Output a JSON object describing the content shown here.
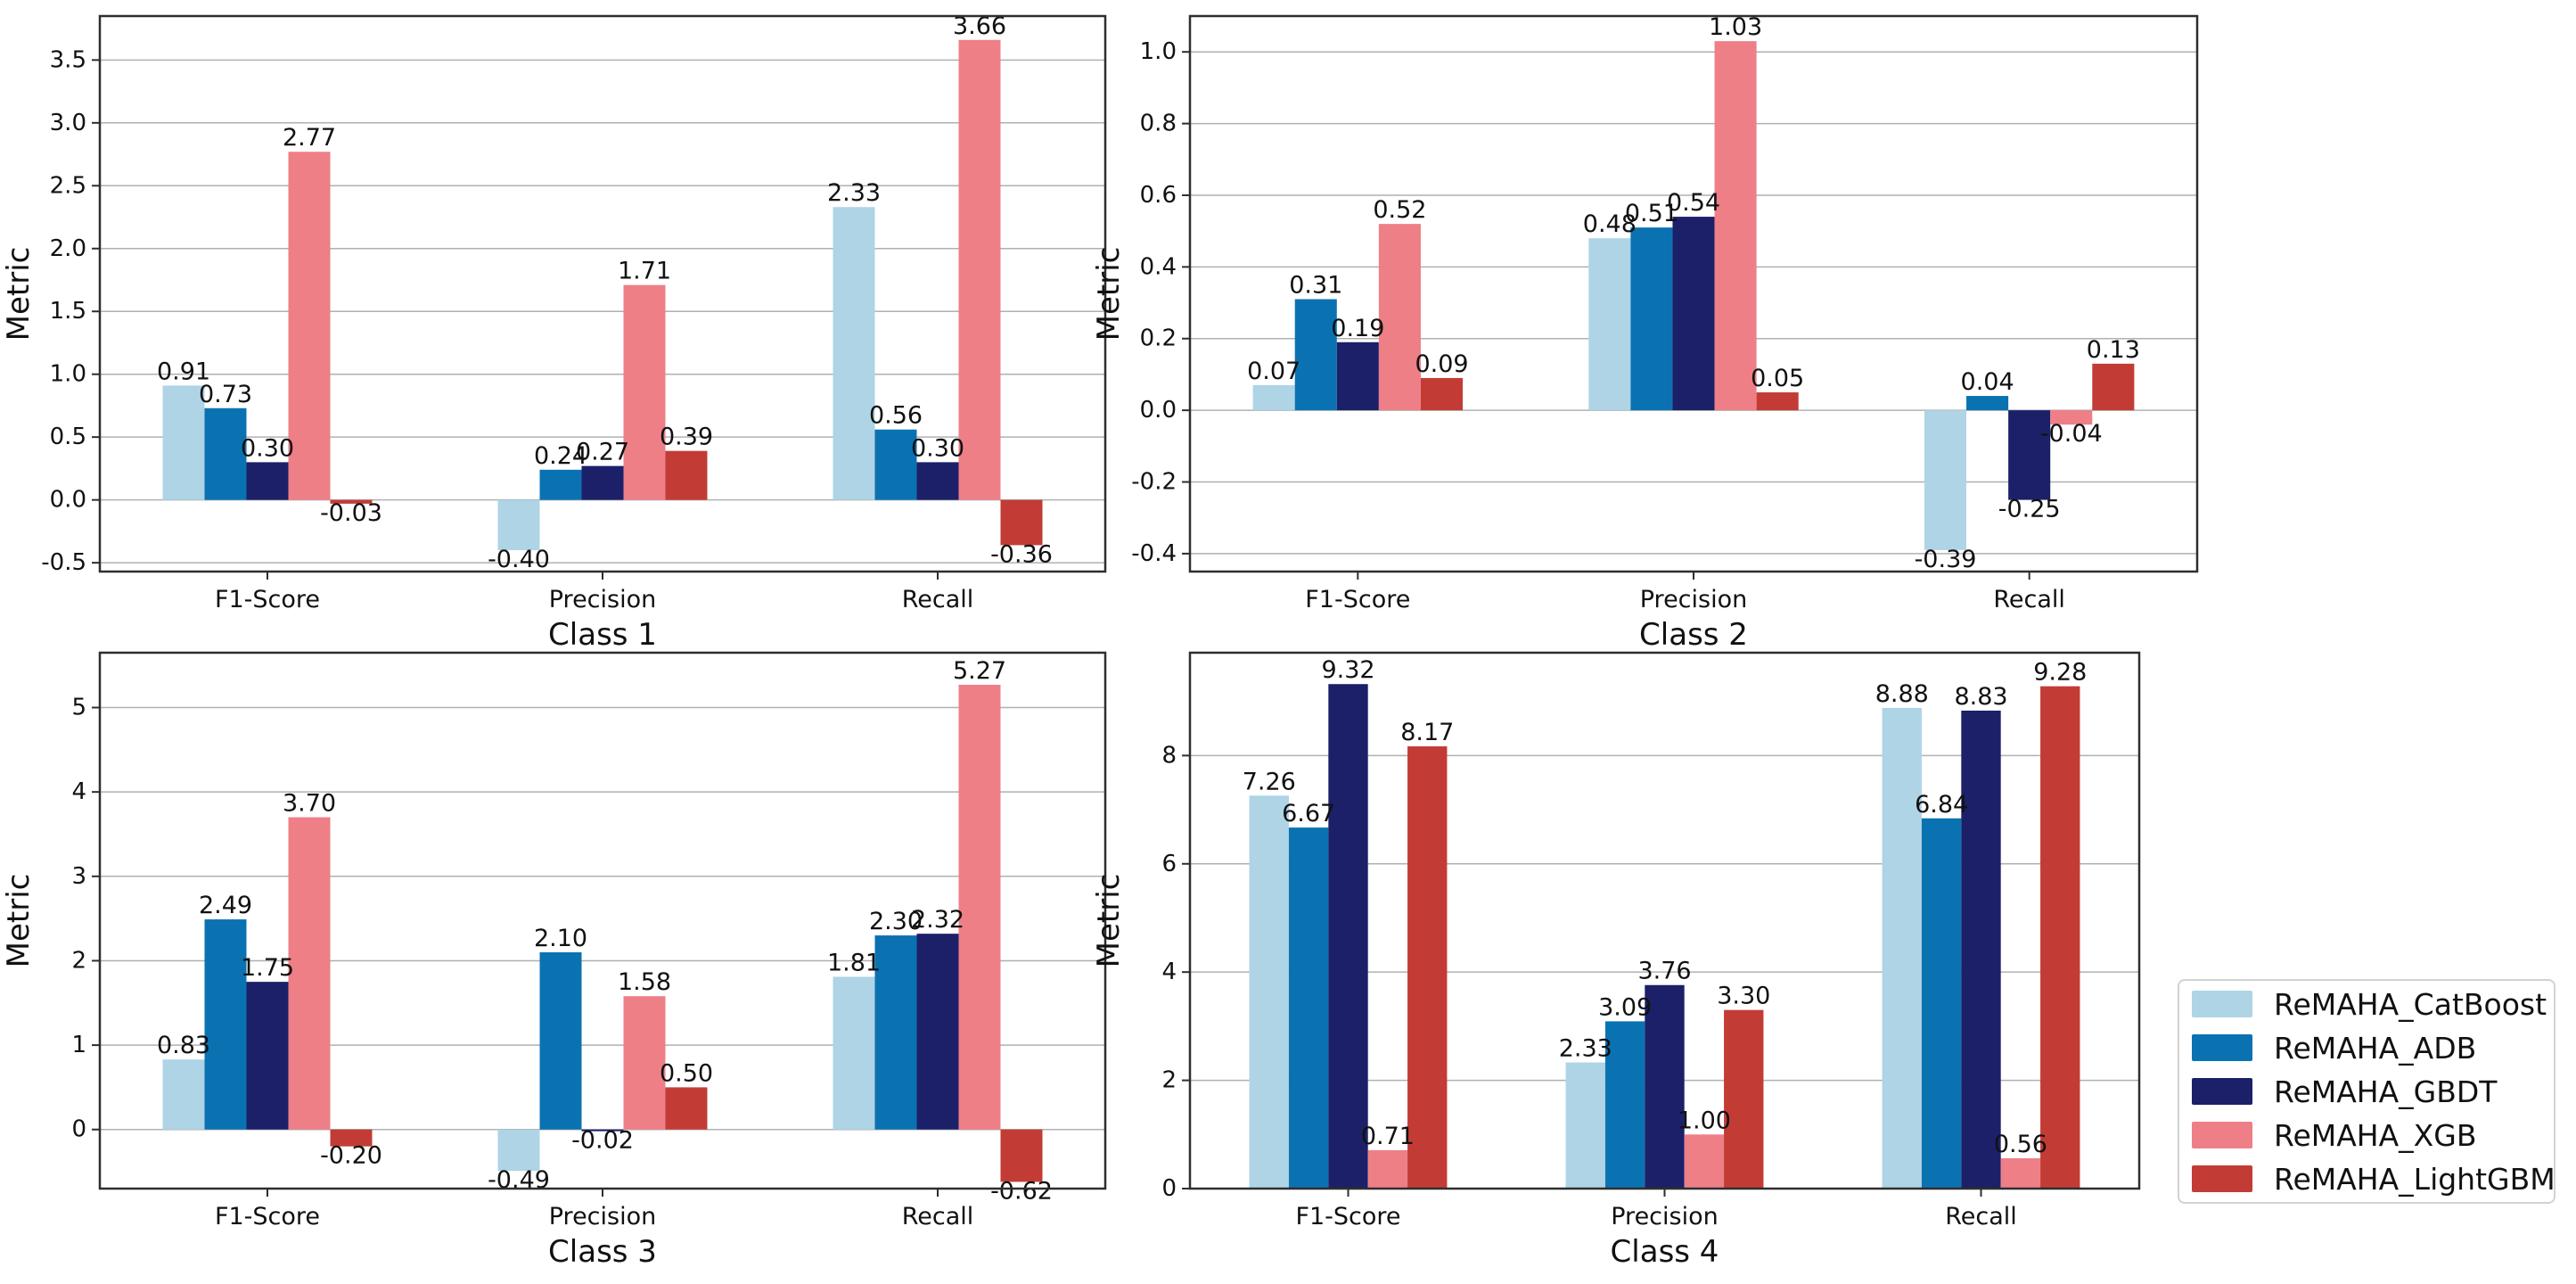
{
  "colors": {
    "background": "#ffffff",
    "grid": "#b0b0b0",
    "spine": "#2e2e2e",
    "text": "#111111",
    "bar_label": "#111111"
  },
  "legend": {
    "entries": [
      {
        "label": "ReMAHA_CatBoost",
        "color": "#aed4e6"
      },
      {
        "label": "ReMAHA_ADB",
        "color": "#0b72b2"
      },
      {
        "label": "ReMAHA_GBDT",
        "color": "#1b2069"
      },
      {
        "label": "ReMAHA_XGB",
        "color": "#ee7f87"
      },
      {
        "label": "ReMAHA_LightGBM",
        "color": "#c23c35"
      }
    ]
  },
  "chart_data": [
    {
      "type": "bar",
      "xlabel": "Class 1",
      "ylabel": "Metric",
      "categories": [
        "F1-Score",
        "Precision",
        "Recall"
      ],
      "series": [
        {
          "name": "ReMAHA_CatBoost",
          "values": [
            0.91,
            -0.4,
            2.33
          ]
        },
        {
          "name": "ReMAHA_ADB",
          "values": [
            0.73,
            0.24,
            0.56
          ]
        },
        {
          "name": "ReMAHA_GBDT",
          "values": [
            0.3,
            0.27,
            0.3
          ]
        },
        {
          "name": "ReMAHA_XGB",
          "values": [
            2.77,
            1.71,
            3.66
          ]
        },
        {
          "name": "ReMAHA_LightGBM",
          "values": [
            -0.03,
            0.39,
            -0.36
          ]
        }
      ],
      "ylim": [
        -0.57,
        3.85
      ],
      "yticks": [
        -0.5,
        0.0,
        0.5,
        1.0,
        1.5,
        2.0,
        2.5,
        3.0,
        3.5
      ],
      "ytick_labels": [
        "-0.5",
        "0.0",
        "0.5",
        "1.0",
        "1.5",
        "2.0",
        "2.5",
        "3.0",
        "3.5"
      ],
      "grid": true,
      "legend_position": "none"
    },
    {
      "type": "bar",
      "xlabel": "Class 2",
      "ylabel": "Metric",
      "categories": [
        "F1-Score",
        "Precision",
        "Recall"
      ],
      "series": [
        {
          "name": "ReMAHA_CatBoost",
          "values": [
            0.07,
            0.48,
            -0.39
          ]
        },
        {
          "name": "ReMAHA_ADB",
          "values": [
            0.31,
            0.51,
            0.04
          ]
        },
        {
          "name": "ReMAHA_GBDT",
          "values": [
            0.19,
            0.54,
            -0.25
          ]
        },
        {
          "name": "ReMAHA_XGB",
          "values": [
            0.52,
            1.03,
            -0.04
          ]
        },
        {
          "name": "ReMAHA_LightGBM",
          "values": [
            0.09,
            0.05,
            0.13
          ]
        }
      ],
      "ylim": [
        -0.45,
        1.1
      ],
      "yticks": [
        -0.4,
        -0.2,
        0.0,
        0.2,
        0.4,
        0.6,
        0.8,
        1.0
      ],
      "ytick_labels": [
        "-0.4",
        "-0.2",
        "0.0",
        "0.2",
        "0.4",
        "0.6",
        "0.8",
        "1.0"
      ],
      "grid": true,
      "legend_position": "none"
    },
    {
      "type": "bar",
      "xlabel": "Class 3",
      "ylabel": "Metric",
      "categories": [
        "F1-Score",
        "Precision",
        "Recall"
      ],
      "series": [
        {
          "name": "ReMAHA_CatBoost",
          "values": [
            0.83,
            -0.49,
            1.81
          ]
        },
        {
          "name": "ReMAHA_ADB",
          "values": [
            2.49,
            2.1,
            2.3
          ]
        },
        {
          "name": "ReMAHA_GBDT",
          "values": [
            1.75,
            -0.02,
            2.32
          ]
        },
        {
          "name": "ReMAHA_XGB",
          "values": [
            3.7,
            1.58,
            5.27
          ]
        },
        {
          "name": "ReMAHA_LightGBM",
          "values": [
            -0.2,
            0.5,
            -0.62
          ]
        }
      ],
      "ylim": [
        -0.7,
        5.65
      ],
      "yticks": [
        0,
        1,
        2,
        3,
        4,
        5
      ],
      "ytick_labels": [
        "0",
        "1",
        "2",
        "3",
        "4",
        "5"
      ],
      "grid": true,
      "legend_position": "none"
    },
    {
      "type": "bar",
      "xlabel": "Class 4",
      "ylabel": "Metric",
      "categories": [
        "F1-Score",
        "Precision",
        "Recall"
      ],
      "series": [
        {
          "name": "ReMAHA_CatBoost",
          "values": [
            7.26,
            2.33,
            8.88
          ]
        },
        {
          "name": "ReMAHA_ADB",
          "values": [
            6.67,
            3.09,
            6.84
          ]
        },
        {
          "name": "ReMAHA_GBDT",
          "values": [
            9.32,
            3.76,
            8.83
          ]
        },
        {
          "name": "ReMAHA_XGB",
          "values": [
            0.71,
            1.0,
            0.56
          ]
        },
        {
          "name": "ReMAHA_LightGBM",
          "values": [
            8.17,
            3.3,
            9.28
          ]
        }
      ],
      "ylim": [
        0,
        9.9
      ],
      "yticks": [
        0,
        2,
        4,
        6,
        8
      ],
      "ytick_labels": [
        "0",
        "2",
        "4",
        "6",
        "8"
      ],
      "grid": true,
      "legend_position": "right-of-plot"
    }
  ]
}
